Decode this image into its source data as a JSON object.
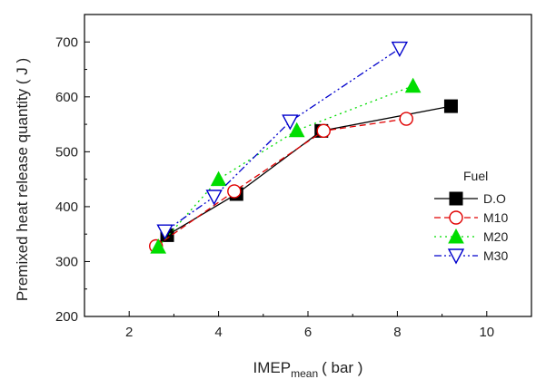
{
  "chart_data": {
    "type": "line",
    "xlabel": "IMEP",
    "xlabel_sub": "mean",
    "xlabel_unit": "( bar )",
    "ylabel": "Premixed heat release quantity ( J )",
    "xlim": [
      1,
      11
    ],
    "ylim": [
      200,
      750
    ],
    "xticks": [
      2,
      4,
      6,
      8,
      10
    ],
    "yticks": [
      200,
      300,
      400,
      500,
      600,
      700
    ],
    "grid": false,
    "legend_title": "Fuel",
    "legend_position": "right",
    "series": [
      {
        "name": "D.O",
        "color": "#000000",
        "dash": "solid",
        "marker": "square-filled",
        "x": [
          2.85,
          4.4,
          6.3,
          9.2
        ],
        "y": [
          348,
          423,
          538,
          583
        ]
      },
      {
        "name": "M10",
        "color": "#e00000",
        "dash": "dashed",
        "marker": "circle-open",
        "x": [
          2.6,
          4.35,
          6.35,
          8.2
        ],
        "y": [
          328,
          428,
          538,
          560
        ]
      },
      {
        "name": "M20",
        "color": "#00dd00",
        "dash": "dotted",
        "marker": "triangle-up-filled",
        "x": [
          2.65,
          4.0,
          5.75,
          8.35
        ],
        "y": [
          327,
          450,
          539,
          620
        ]
      },
      {
        "name": "M30",
        "color": "#0000cc",
        "dash": "dashdotdot",
        "marker": "triangle-down-open",
        "x": [
          2.8,
          3.9,
          5.6,
          8.05
        ],
        "y": [
          355,
          418,
          555,
          688
        ]
      }
    ]
  }
}
